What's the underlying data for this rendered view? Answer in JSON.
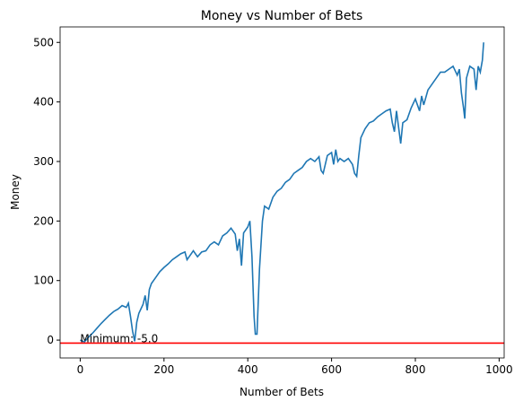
{
  "chart_data": {
    "type": "line",
    "title": "Money vs Number of Bets",
    "x_label": "Number of Bets",
    "y_label": "Money",
    "annotation": "Minimum: -5.0",
    "hline": -5,
    "hline_color": "#ff0000",
    "x": [
      0,
      10,
      20,
      30,
      40,
      50,
      60,
      70,
      80,
      90,
      100,
      110,
      115,
      120,
      125,
      130,
      135,
      140,
      150,
      155,
      160,
      165,
      170,
      180,
      190,
      200,
      210,
      220,
      230,
      240,
      250,
      255,
      260,
      270,
      280,
      290,
      300,
      310,
      320,
      330,
      340,
      350,
      360,
      370,
      375,
      380,
      385,
      390,
      400,
      405,
      410,
      415,
      418,
      422,
      428,
      435,
      440,
      450,
      460,
      470,
      480,
      490,
      500,
      510,
      520,
      530,
      540,
      550,
      560,
      570,
      575,
      580,
      590,
      600,
      605,
      610,
      615,
      620,
      630,
      640,
      650,
      655,
      660,
      665,
      670,
      680,
      690,
      700,
      710,
      720,
      730,
      740,
      745,
      750,
      755,
      765,
      770,
      780,
      790,
      800,
      810,
      815,
      820,
      830,
      840,
      850,
      860,
      870,
      880,
      890,
      900,
      905,
      910,
      915,
      918,
      922,
      930,
      940,
      945,
      950,
      955,
      960,
      963
    ],
    "series": [
      {
        "name": "Money",
        "color": "#1f77b4",
        "values": [
          0,
          -3,
          5,
          12,
          20,
          28,
          35,
          42,
          48,
          52,
          58,
          55,
          62,
          40,
          15,
          -2,
          30,
          45,
          60,
          75,
          50,
          85,
          95,
          105,
          115,
          122,
          128,
          135,
          140,
          145,
          148,
          135,
          140,
          150,
          140,
          148,
          150,
          160,
          165,
          160,
          175,
          180,
          188,
          178,
          150,
          170,
          125,
          180,
          190,
          200,
          140,
          40,
          10,
          10,
          120,
          200,
          225,
          220,
          240,
          250,
          255,
          265,
          270,
          280,
          285,
          290,
          300,
          305,
          300,
          308,
          285,
          280,
          310,
          315,
          295,
          320,
          300,
          305,
          300,
          305,
          295,
          280,
          275,
          310,
          340,
          355,
          365,
          368,
          375,
          380,
          385,
          388,
          365,
          350,
          385,
          330,
          365,
          370,
          390,
          405,
          385,
          410,
          395,
          420,
          430,
          440,
          450,
          450,
          455,
          460,
          445,
          455,
          415,
          390,
          372,
          440,
          460,
          455,
          420,
          460,
          450,
          470,
          500
        ]
      }
    ],
    "xlim": [
      -48,
      1012
    ],
    "ylim": [
      -30,
      526
    ],
    "xticks": [
      0,
      200,
      400,
      600,
      800,
      1000
    ],
    "yticks": [
      0,
      100,
      200,
      300,
      400,
      500
    ]
  }
}
